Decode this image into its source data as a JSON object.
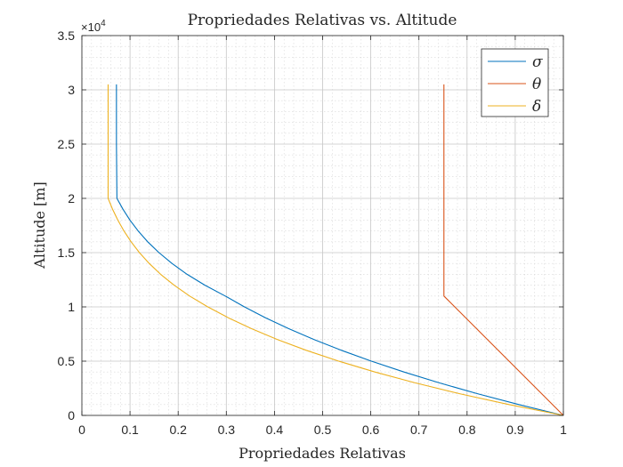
{
  "chart_data": {
    "type": "line",
    "title": "Propriedades Relativas vs.  Altitude",
    "xlabel": "Propriedades Relativas",
    "ylabel": "Altitude [m]",
    "xlim": [
      0,
      1
    ],
    "ylim": [
      0,
      35000
    ],
    "y_exponent_label": "×10",
    "y_exponent_power": "4",
    "x_ticks": [
      0,
      0.1,
      0.2,
      0.3,
      0.4,
      0.5,
      0.6,
      0.7,
      0.8,
      0.9,
      1
    ],
    "x_tick_labels": [
      "0",
      "0.1",
      "0.2",
      "0.3",
      "0.4",
      "0.5",
      "0.6",
      "0.7",
      "0.8",
      "0.9",
      "1"
    ],
    "y_ticks": [
      0,
      5000,
      10000,
      15000,
      20000,
      25000,
      30000,
      35000
    ],
    "y_tick_labels": [
      "0",
      "0.5",
      "1",
      "1.5",
      "2",
      "2.5",
      "3",
      "3.5"
    ],
    "grid": true,
    "minor_grid": true,
    "legend_position": "top-right",
    "series": [
      {
        "name": "σ",
        "color": "#0072BD",
        "x": [
          1.0,
          0.9075,
          0.8217,
          0.7422,
          0.6689,
          0.6012,
          0.5389,
          0.4817,
          0.4292,
          0.3813,
          0.3376,
          0.2978,
          0.2555,
          0.2185,
          0.1872,
          0.1601,
          0.1366,
          0.1168,
          0.0998,
          0.0853,
          0.0728,
          0.0718,
          0.0718
        ],
        "y": [
          0,
          1000,
          2000,
          3000,
          4000,
          5000,
          6000,
          7000,
          8000,
          9000,
          10000,
          11000,
          12000,
          13000,
          14000,
          15000,
          16000,
          17000,
          18000,
          19000,
          20000,
          25000,
          30500
        ]
      },
      {
        "name": "θ",
        "color": "#D95319",
        "x": [
          1.0,
          0.7519,
          0.7519,
          0.7519
        ],
        "y": [
          0,
          11000,
          20000,
          30500
        ]
      },
      {
        "name": "δ",
        "color": "#EDB120",
        "x": [
          1.0,
          0.887,
          0.7846,
          0.692,
          0.6085,
          0.5334,
          0.466,
          0.4057,
          0.3519,
          0.304,
          0.2615,
          0.2238,
          0.1915,
          0.1636,
          0.1399,
          0.1195,
          0.1022,
          0.0873,
          0.0746,
          0.0637,
          0.0545,
          0.0545,
          0.0545
        ],
        "y": [
          0,
          1000,
          2000,
          3000,
          4000,
          5000,
          6000,
          7000,
          8000,
          9000,
          10000,
          11000,
          12000,
          13000,
          14000,
          15000,
          16000,
          17000,
          18000,
          19000,
          20000,
          25000,
          30500
        ]
      }
    ]
  }
}
